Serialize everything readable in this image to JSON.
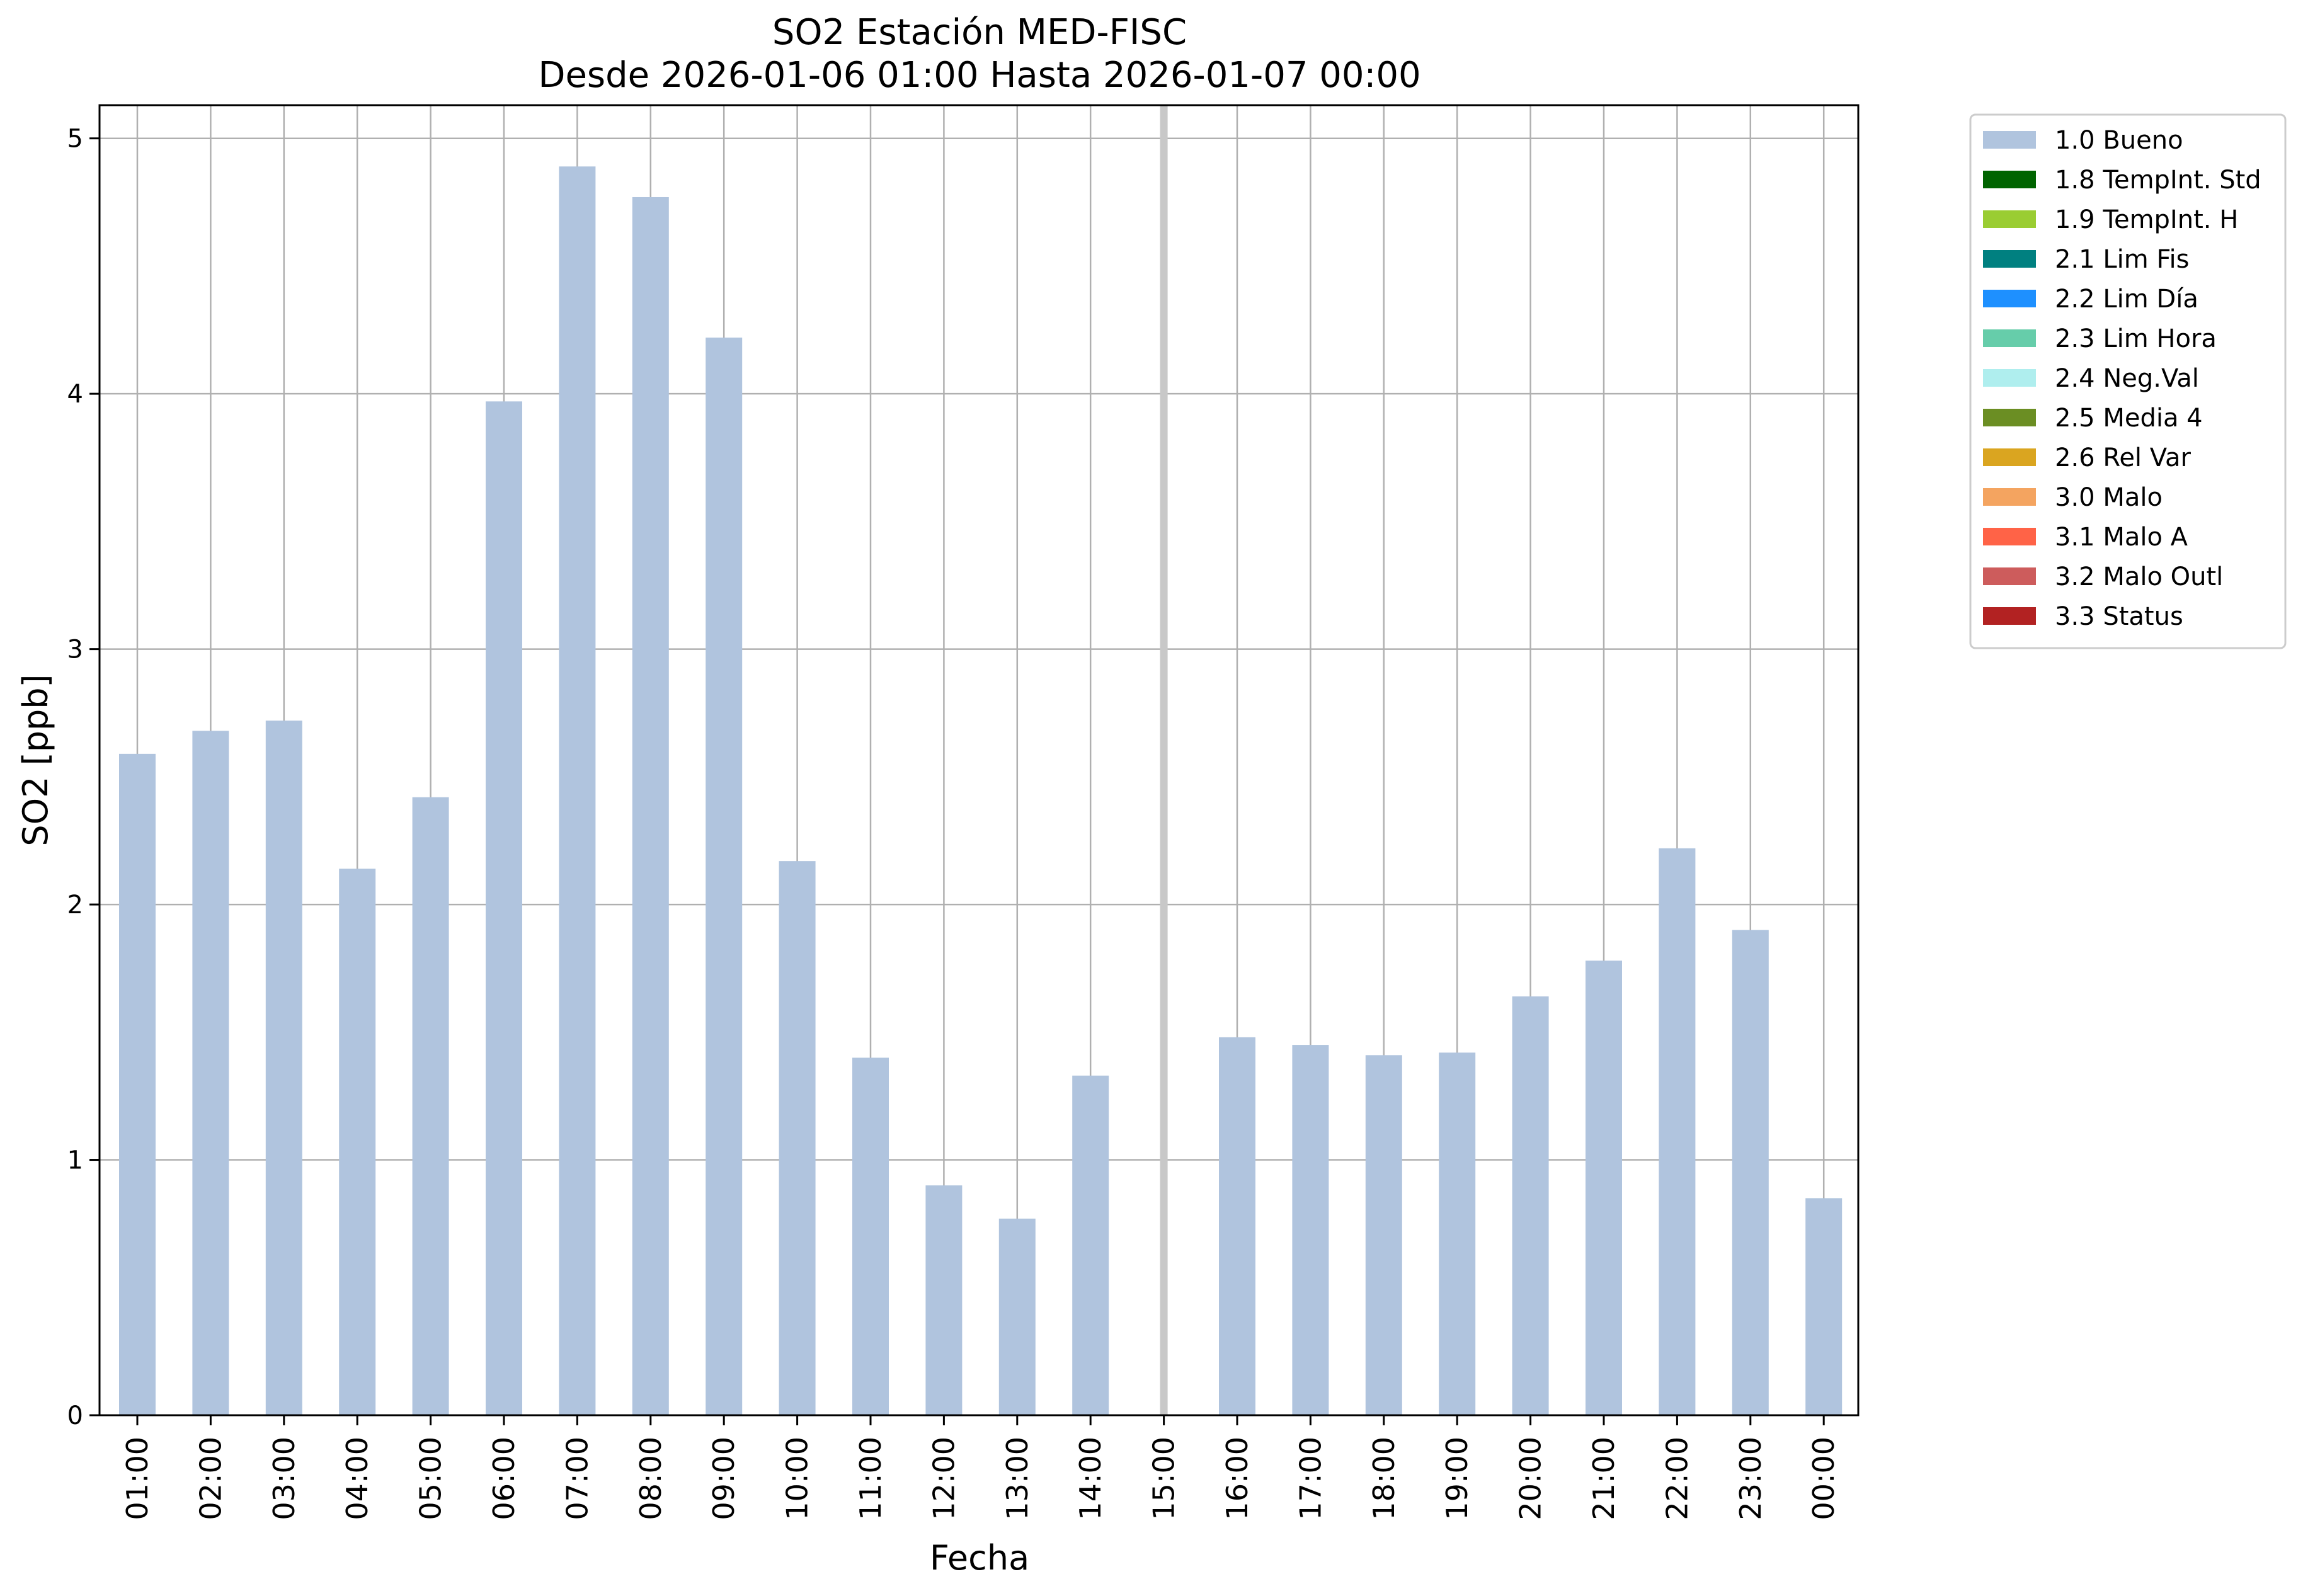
{
  "chart_data": {
    "type": "bar",
    "title": "SO2 Estación MED-FISC",
    "subtitle": "Desde 2026-01-06 01:00 Hasta 2026-01-07 00:00",
    "xlabel": "Fecha",
    "ylabel": "SO2 [ppb]",
    "ylim": [
      0,
      5.13
    ],
    "yticks": [
      0,
      1,
      2,
      3,
      4,
      5
    ],
    "grid": true,
    "categories": [
      "01:00",
      "02:00",
      "03:00",
      "04:00",
      "05:00",
      "06:00",
      "07:00",
      "08:00",
      "09:00",
      "10:00",
      "11:00",
      "12:00",
      "13:00",
      "14:00",
      "15:00",
      "16:00",
      "17:00",
      "18:00",
      "19:00",
      "20:00",
      "21:00",
      "22:00",
      "23:00",
      "00:00"
    ],
    "series": [
      {
        "name": "1.0 Bueno",
        "color": "#b0c4de",
        "values": [
          2.59,
          2.68,
          2.72,
          2.14,
          2.42,
          3.97,
          4.89,
          4.77,
          4.22,
          2.17,
          1.4,
          0.9,
          0.77,
          1.33,
          null,
          1.48,
          1.45,
          1.41,
          1.42,
          1.64,
          1.78,
          2.22,
          1.9,
          0.85
        ]
      }
    ],
    "highlight_category": "15:00",
    "legend_position": "outside-right-top",
    "legend": [
      {
        "label": "1.0 Bueno",
        "color": "#b0c4de"
      },
      {
        "label": "1.8 TempInt. Std",
        "color": "#006400"
      },
      {
        "label": "1.9 TempInt. H",
        "color": "#9acd32"
      },
      {
        "label": "2.1 Lim Fis",
        "color": "#008080"
      },
      {
        "label": "2.2 Lim Día",
        "color": "#1e90ff"
      },
      {
        "label": "2.3 Lim Hora",
        "color": "#66cdaa"
      },
      {
        "label": "2.4 Neg.Val",
        "color": "#afeeee"
      },
      {
        "label": "2.5 Media 4",
        "color": "#6b8e23"
      },
      {
        "label": "2.6 Rel Var",
        "color": "#daa520"
      },
      {
        "label": "3.0 Malo",
        "color": "#f4a460"
      },
      {
        "label": "3.1 Malo A",
        "color": "#ff6347"
      },
      {
        "label": "3.2 Malo Outl",
        "color": "#cd5c5c"
      },
      {
        "label": "3.3 Status",
        "color": "#b22222"
      }
    ]
  }
}
